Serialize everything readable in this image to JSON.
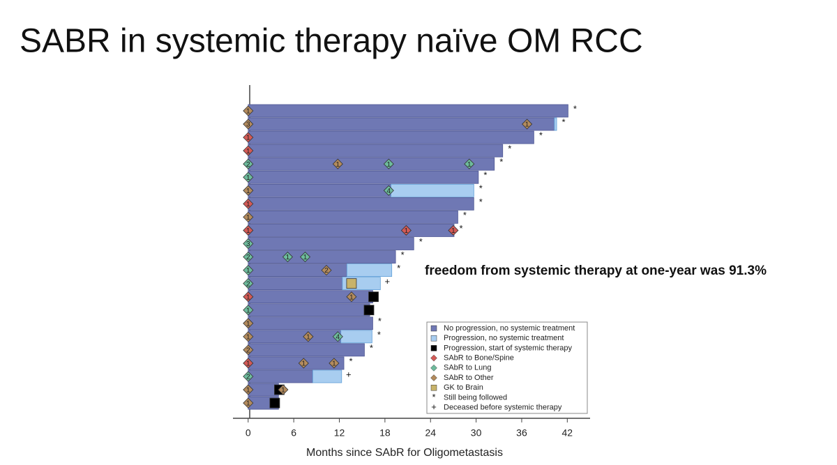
{
  "title": "SABR in systemic therapy naïve OM RCC",
  "chart_data": {
    "type": "swimmer",
    "xlabel": "Months since SAbR for Oligometastasis",
    "annotation": "freedom from systemic therapy at one-year was 91.3%",
    "xlim": [
      -2,
      45
    ],
    "xticks": [
      0,
      6,
      12,
      18,
      24,
      30,
      36,
      42
    ],
    "categories": [
      null,
      null,
      null,
      null,
      null,
      null,
      null,
      null,
      null,
      null,
      null,
      null,
      null,
      null,
      null,
      null,
      null,
      null,
      null,
      null,
      null,
      null,
      null
    ],
    "series": [
      {
        "name": "No progression, no systemic treatment",
        "mark": "bar",
        "color": "#6f78b4",
        "values": [
          42.1,
          40.3,
          37.6,
          33.5,
          32.4,
          30.3,
          18.8,
          29.7,
          27.6,
          27.1,
          21.8,
          19.4,
          13.0,
          12.4,
          16.4,
          16.0,
          16.4,
          12.2,
          15.3,
          12.6,
          8.5,
          4.0,
          4.0
        ]
      },
      {
        "name": "Progression, no systemic treatment",
        "mark": "bar",
        "color": "#a8cdf0",
        "values": [
          null,
          40.6,
          null,
          null,
          null,
          null,
          29.7,
          null,
          null,
          null,
          null,
          null,
          18.9,
          17.4,
          null,
          null,
          null,
          16.3,
          null,
          null,
          12.3,
          null,
          null
        ]
      },
      {
        "name": "Progression, start of systemic therapy",
        "mark": "square",
        "color": "#000000",
        "points": [
          {
            "row": 14,
            "x": 16.5
          },
          {
            "row": 15,
            "x": 15.9
          },
          {
            "row": 21,
            "x": 4.1
          },
          {
            "row": 22,
            "x": 3.5
          }
        ]
      },
      {
        "name": "SAbR to Bone/Spine",
        "mark": "diamond",
        "color": "#d35a56",
        "points": [
          {
            "row": 2,
            "x": 0,
            "count": 1
          },
          {
            "row": 3,
            "x": 0,
            "count": 1
          },
          {
            "row": 7,
            "x": 0,
            "count": 1
          },
          {
            "row": 9,
            "x": 0,
            "count": 1
          },
          {
            "row": 9,
            "x": 20.8,
            "count": 1
          },
          {
            "row": 9,
            "x": 27.0,
            "count": 1
          },
          {
            "row": 14,
            "x": 0,
            "count": 1
          },
          {
            "row": 19,
            "x": 0,
            "count": 1
          }
        ]
      },
      {
        "name": "SAbR to Lung",
        "mark": "diamond",
        "color": "#6dbb9c",
        "points": [
          {
            "row": 4,
            "x": 0,
            "count": 2
          },
          {
            "row": 4,
            "x": 18.5,
            "count": 1
          },
          {
            "row": 4,
            "x": 29.1,
            "count": 1
          },
          {
            "row": 5,
            "x": 0,
            "count": 1
          },
          {
            "row": 6,
            "x": 18.5,
            "count": 4
          },
          {
            "row": 10,
            "x": 0,
            "count": 3
          },
          {
            "row": 11,
            "x": 0,
            "count": 2
          },
          {
            "row": 11,
            "x": 5.2,
            "count": 1
          },
          {
            "row": 11,
            "x": 7.5,
            "count": 1
          },
          {
            "row": 12,
            "x": 0,
            "count": 1
          },
          {
            "row": 13,
            "x": 0,
            "count": 2
          },
          {
            "row": 15,
            "x": 0,
            "count": 1
          },
          {
            "row": 17,
            "x": 7.9,
            "count": 1
          },
          {
            "row": 17,
            "x": 11.8,
            "count": 4
          },
          {
            "row": 20,
            "x": 0,
            "count": 2
          }
        ]
      },
      {
        "name": "SAbR to Other",
        "mark": "diamond",
        "color": "#b38b5d",
        "points": [
          {
            "row": 0,
            "x": 0,
            "count": 1
          },
          {
            "row": 1,
            "x": 0,
            "count": 3
          },
          {
            "row": 1,
            "x": 36.7,
            "count": 1
          },
          {
            "row": 4,
            "x": 11.8,
            "count": 1
          },
          {
            "row": 6,
            "x": 0,
            "count": 1
          },
          {
            "row": 8,
            "x": 0,
            "count": 1
          },
          {
            "row": 12,
            "x": 10.3,
            "count": 2
          },
          {
            "row": 14,
            "x": 13.6,
            "count": 1
          },
          {
            "row": 16,
            "x": 0,
            "count": 1
          },
          {
            "row": 17,
            "x": 0,
            "count": 1
          },
          {
            "row": 17,
            "x": 7.9,
            "count": 1
          },
          {
            "row": 18,
            "x": 0,
            "count": 2
          },
          {
            "row": 19,
            "x": 7.3,
            "count": 1
          },
          {
            "row": 19,
            "x": 11.3,
            "count": 1
          },
          {
            "row": 21,
            "x": 0,
            "count": 1
          },
          {
            "row": 21,
            "x": 4.6,
            "count": 1
          },
          {
            "row": 22,
            "x": 0,
            "count": 1
          }
        ]
      },
      {
        "name": "GK to Brain",
        "mark": "square",
        "color": "#c8b36a",
        "points": [
          {
            "row": 13,
            "x": 13.6
          }
        ]
      },
      {
        "name": "Still being followed",
        "mark": "symbol",
        "symbol": "*",
        "rows": [
          0,
          1,
          2,
          3,
          4,
          5,
          6,
          7,
          8,
          9,
          10,
          11,
          12,
          16,
          17,
          18,
          19
        ]
      },
      {
        "name": "Deceased before systemic therapy",
        "mark": "symbol",
        "symbol": "+",
        "rows": [
          13,
          20
        ]
      }
    ]
  }
}
